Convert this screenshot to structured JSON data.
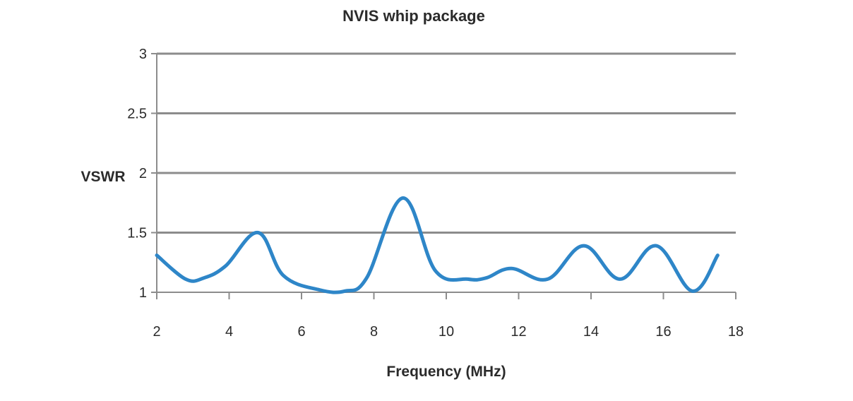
{
  "chart_data": {
    "type": "line",
    "title": "NVIS whip package",
    "xlabel": "Frequency (MHz)",
    "ylabel": "VSWR",
    "xlim": [
      2,
      18
    ],
    "ylim": [
      1,
      3
    ],
    "x_ticks": [
      "2",
      "4",
      "6",
      "8",
      "10",
      "12",
      "14",
      "16",
      "18"
    ],
    "y_ticks": [
      "1",
      "1.5",
      "2",
      "2.5",
      "3"
    ],
    "grid": true,
    "legend": "none",
    "series": [
      {
        "color": "#2e86c8",
        "x": [
          2.0,
          2.8,
          3.3,
          3.9,
          4.8,
          5.5,
          6.5,
          7.2,
          7.8,
          8.8,
          9.7,
          10.6,
          11.1,
          11.8,
          12.8,
          13.8,
          14.8,
          15.8,
          16.8,
          17.5
        ],
        "y": [
          1.31,
          1.11,
          1.12,
          1.22,
          1.5,
          1.14,
          1.02,
          1.01,
          1.12,
          1.79,
          1.18,
          1.11,
          1.12,
          1.2,
          1.11,
          1.39,
          1.11,
          1.39,
          1.01,
          1.31
        ]
      }
    ]
  }
}
